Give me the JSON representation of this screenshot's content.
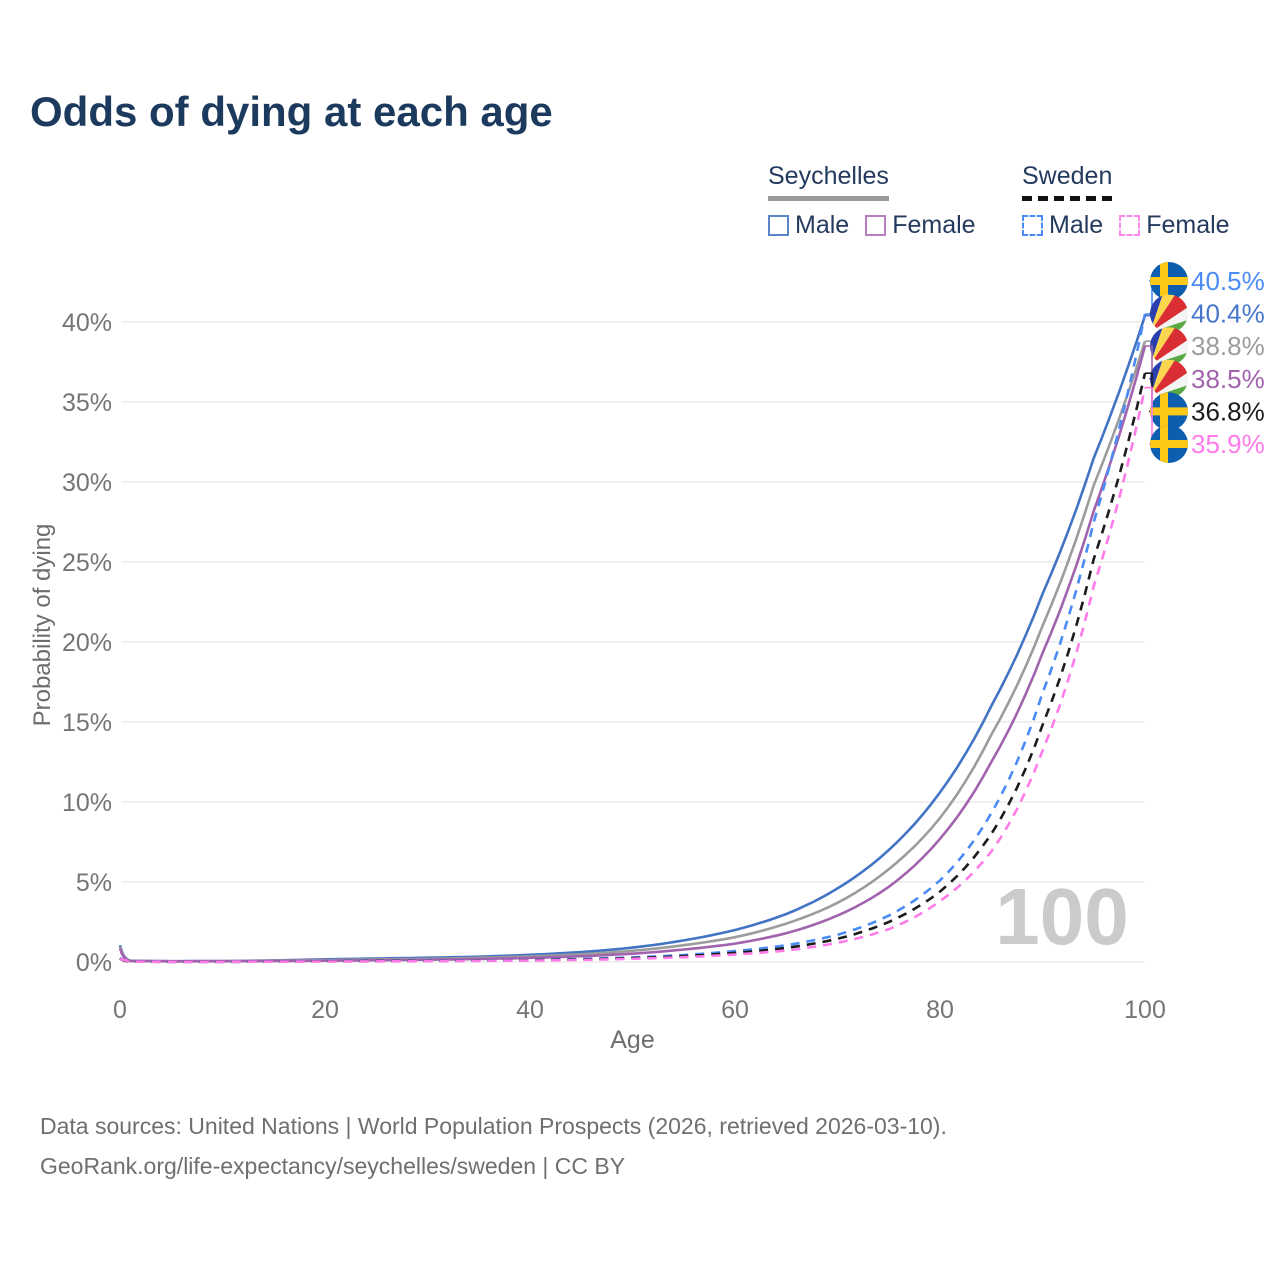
{
  "title": "Odds of dying at each age",
  "legend": {
    "groups": [
      {
        "label": "Seychelles",
        "style": "solid",
        "underline_color": "#9a9a9a",
        "items": [
          {
            "label": "Male",
            "color": "#5b84c6",
            "dash": false
          },
          {
            "label": "Female",
            "color": "#b77fc0",
            "dash": false
          }
        ]
      },
      {
        "label": "Sweden",
        "style": "dashed",
        "underline_color": "#111111",
        "items": [
          {
            "label": "Male",
            "color": "#4b8bf5",
            "dash": true
          },
          {
            "label": "Female",
            "color": "#ff86ec",
            "dash": true
          }
        ]
      }
    ]
  },
  "chart_data": {
    "type": "line",
    "title": "Odds of dying at each age",
    "xlabel": "Age",
    "ylabel": "Probability of dying",
    "xlim": [
      0,
      100
    ],
    "ylim": [
      0,
      43
    ],
    "x_ticks": [
      0,
      20,
      40,
      60,
      80,
      100
    ],
    "y_ticks": [
      "0%",
      "5%",
      "10%",
      "15%",
      "20%",
      "25%",
      "30%",
      "35%",
      "40%"
    ],
    "grid": "horizontal-only",
    "legend_position": "top-right",
    "watermark_age": "100",
    "x": [
      0,
      1,
      5,
      10,
      15,
      20,
      25,
      30,
      35,
      40,
      45,
      50,
      55,
      60,
      65,
      70,
      75,
      80,
      85,
      90,
      95,
      100
    ],
    "series": [
      {
        "name": "Seychelles Male",
        "country": "Seychelles",
        "sex": "Male",
        "color": "#4374c4",
        "label_color": "#4576cc",
        "dash": false,
        "flag": "seychelles",
        "end_label": "40.4%",
        "values": [
          1.05,
          0.08,
          0.05,
          0.06,
          0.1,
          0.17,
          0.22,
          0.27,
          0.33,
          0.45,
          0.62,
          0.9,
          1.35,
          2.0,
          3.0,
          4.6,
          7.0,
          10.6,
          16.0,
          23.0,
          31.5,
          40.4
        ]
      },
      {
        "name": "Seychelles Both sexes",
        "country": "Seychelles",
        "sex": "Both",
        "color": "#9c9c9c",
        "label_color": "#9c9c9c",
        "dash": false,
        "flag": "seychelles",
        "end_label": "38.8%",
        "values": [
          0.95,
          0.07,
          0.045,
          0.05,
          0.08,
          0.12,
          0.16,
          0.2,
          0.26,
          0.35,
          0.48,
          0.7,
          1.05,
          1.55,
          2.4,
          3.7,
          5.8,
          9.0,
          14.2,
          21.0,
          29.8,
          38.8
        ]
      },
      {
        "name": "Seychelles Female",
        "country": "Seychelles",
        "sex": "Female",
        "color": "#a263ae",
        "label_color": "#a263ae",
        "dash": false,
        "flag": "seychelles",
        "end_label": "38.5%",
        "values": [
          0.85,
          0.06,
          0.04,
          0.045,
          0.06,
          0.08,
          0.11,
          0.14,
          0.19,
          0.26,
          0.36,
          0.52,
          0.78,
          1.15,
          1.8,
          2.9,
          4.7,
          7.7,
          12.5,
          19.3,
          28.2,
          38.5
        ]
      },
      {
        "name": "Sweden Male",
        "country": "Sweden",
        "sex": "Male",
        "color": "#4b8bf5",
        "label_color": "#4b8bf5",
        "dash": true,
        "flag": "sweden",
        "end_label": "40.5%",
        "values": [
          0.25,
          0.03,
          0.01,
          0.01,
          0.03,
          0.06,
          0.07,
          0.08,
          0.1,
          0.13,
          0.19,
          0.29,
          0.44,
          0.68,
          1.05,
          1.7,
          2.9,
          5.1,
          9.3,
          16.8,
          27.5,
          40.5
        ]
      },
      {
        "name": "Sweden Both sexes",
        "country": "Sweden",
        "sex": "Both",
        "color": "#1c1c1c",
        "label_color": "#1c1c1c",
        "dash": true,
        "flag": "sweden",
        "end_label": "36.8%",
        "values": [
          0.22,
          0.025,
          0.01,
          0.01,
          0.025,
          0.045,
          0.055,
          0.065,
          0.085,
          0.11,
          0.16,
          0.24,
          0.37,
          0.57,
          0.88,
          1.45,
          2.5,
          4.4,
          8.0,
          14.8,
          25.2,
          36.8
        ]
      },
      {
        "name": "Sweden Female",
        "country": "Sweden",
        "sex": "Female",
        "color": "#ff7bea",
        "label_color": "#ff7bea",
        "dash": true,
        "flag": "sweden",
        "end_label": "35.9%",
        "values": [
          0.19,
          0.02,
          0.008,
          0.009,
          0.02,
          0.03,
          0.04,
          0.05,
          0.07,
          0.09,
          0.13,
          0.2,
          0.3,
          0.47,
          0.72,
          1.2,
          2.05,
          3.8,
          6.9,
          13.2,
          23.5,
          35.9
        ]
      }
    ]
  },
  "footer": {
    "line1": "Data sources: United Nations | World Population Prospects (2026, retrieved 2026-03-10).",
    "line2": "GeoRank.org/life-expectancy/seychelles/sweden | CC BY"
  }
}
